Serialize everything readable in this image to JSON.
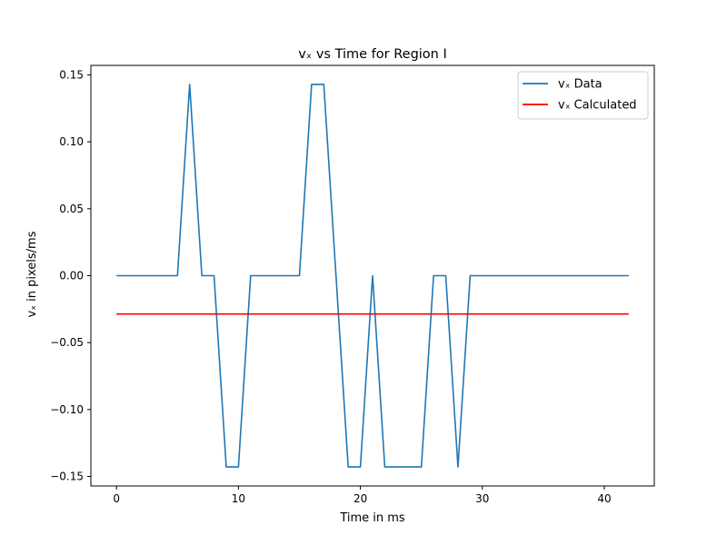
{
  "chart_data": {
    "type": "line",
    "title": "vₓ vs Time for Region I",
    "xlabel": "Time in ms",
    "ylabel": "vₓ in pixels/ms",
    "xlim": [
      -2.1,
      44.1
    ],
    "ylim": [
      -0.1571,
      0.1571
    ],
    "grid": false,
    "legend_position": "top-right",
    "x_ticks": [
      0,
      10,
      20,
      30,
      40
    ],
    "x_tick_labels": [
      "0",
      "10",
      "20",
      "30",
      "40"
    ],
    "y_ticks": [
      0.15,
      0.1,
      0.05,
      0.0,
      -0.05,
      -0.1,
      -0.15
    ],
    "y_tick_labels": [
      "0.15",
      "0.10",
      "0.05",
      "0.00",
      "−0.05",
      "−0.10",
      "−0.15"
    ],
    "series": [
      {
        "name": "vₓ Data",
        "color": "#1f77b4",
        "x": [
          0,
          1,
          2,
          3,
          4,
          5,
          6,
          7,
          8,
          9,
          10,
          11,
          12,
          13,
          14,
          15,
          16,
          17,
          18,
          19,
          20,
          21,
          22,
          23,
          24,
          25,
          26,
          27,
          28,
          29,
          30,
          31,
          32,
          33,
          34,
          35,
          36,
          37,
          38,
          39,
          40,
          41,
          42
        ],
        "values": [
          0,
          0,
          0,
          0,
          0,
          0,
          0.1429,
          0,
          0,
          -0.1429,
          -0.1429,
          0,
          0,
          0,
          0,
          0,
          0.1429,
          0.1429,
          0,
          -0.1429,
          -0.1429,
          0,
          -0.1429,
          -0.1429,
          -0.1429,
          -0.1429,
          0,
          0,
          -0.1429,
          0,
          0,
          0,
          0,
          0,
          0,
          0,
          0,
          0,
          0,
          0,
          0,
          0,
          0
        ]
      },
      {
        "name": "vₓ Calculated",
        "color": "#ff0000",
        "x": [
          0,
          42
        ],
        "values": [
          -0.0286,
          -0.0286
        ]
      }
    ]
  }
}
